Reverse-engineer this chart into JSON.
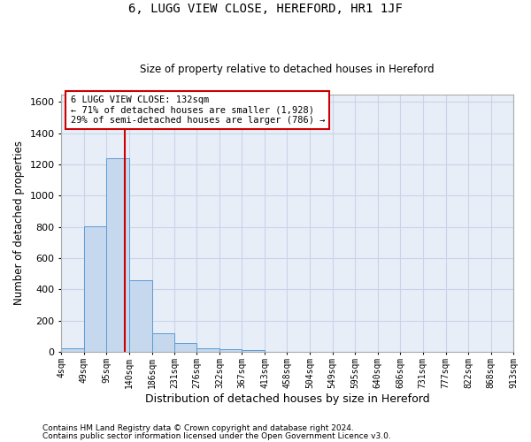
{
  "title": "6, LUGG VIEW CLOSE, HEREFORD, HR1 1JF",
  "subtitle": "Size of property relative to detached houses in Hereford",
  "xlabel": "Distribution of detached houses by size in Hereford",
  "ylabel": "Number of detached properties",
  "footnote1": "Contains HM Land Registry data © Crown copyright and database right 2024.",
  "footnote2": "Contains public sector information licensed under the Open Government Licence v3.0.",
  "bar_color": "#c5d8ed",
  "bar_edge_color": "#5b9bd5",
  "grid_color": "#c8d4e8",
  "background_color": "#e8eef8",
  "annotation_box_facecolor": "#ffffff",
  "annotation_border_color": "#cc0000",
  "vline_color": "#cc0000",
  "bin_edges": [
    4,
    49,
    95,
    140,
    186,
    231,
    276,
    322,
    367,
    413,
    458,
    504,
    549,
    595,
    640,
    686,
    731,
    777,
    822,
    868,
    913
  ],
  "bin_labels": [
    "4sqm",
    "49sqm",
    "95sqm",
    "140sqm",
    "186sqm",
    "231sqm",
    "276sqm",
    "322sqm",
    "367sqm",
    "413sqm",
    "458sqm",
    "504sqm",
    "549sqm",
    "595sqm",
    "640sqm",
    "686sqm",
    "731sqm",
    "777sqm",
    "822sqm",
    "868sqm",
    "913sqm"
  ],
  "bar_heights": [
    25,
    805,
    1240,
    460,
    120,
    60,
    22,
    18,
    12,
    0,
    0,
    0,
    0,
    0,
    0,
    0,
    0,
    0,
    0,
    0
  ],
  "vline_x": 132,
  "annotation_line1": "6 LUGG VIEW CLOSE: 132sqm",
  "annotation_line2": "← 71% of detached houses are smaller (1,928)",
  "annotation_line3": "29% of semi-detached houses are larger (786) →",
  "ylim": [
    0,
    1650
  ],
  "yticks": [
    0,
    200,
    400,
    600,
    800,
    1000,
    1200,
    1400,
    1600
  ]
}
